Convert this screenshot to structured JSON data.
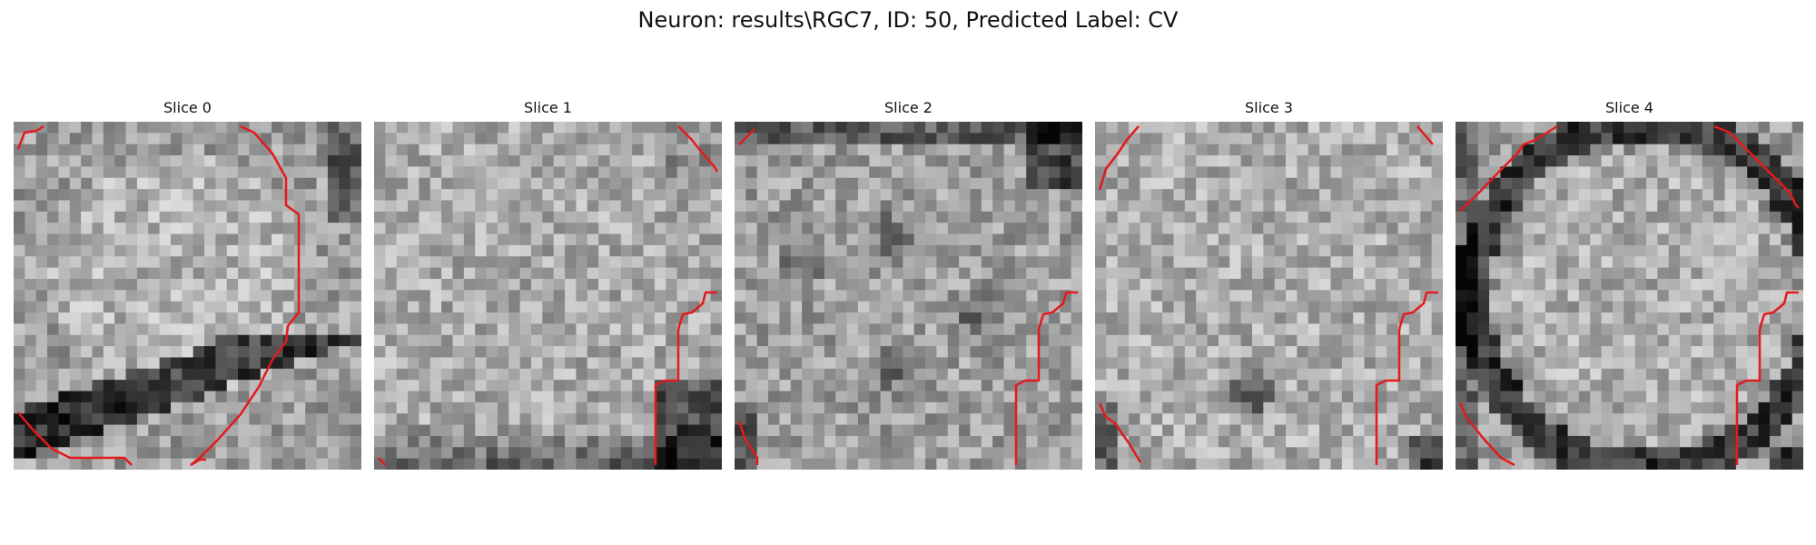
{
  "figure": {
    "title": "Neuron: results\\RGC7, ID: 50, Predicted Label: CV",
    "contour_color": "#e41a1c",
    "colormap": "grayscale"
  },
  "panels": [
    {
      "title": "Slice 0",
      "seed": 11,
      "theme": "cell-with-dark-band-bottom"
    },
    {
      "title": "Slice 1",
      "seed": 27,
      "theme": "bright-cell-dark-bottom-right"
    },
    {
      "title": "Slice 2",
      "seed": 43,
      "theme": "textured-dark-blobs"
    },
    {
      "title": "Slice 3",
      "seed": 59,
      "theme": "bright-noisy"
    },
    {
      "title": "Slice 4",
      "seed": 71,
      "theme": "cell-with-dark-ring"
    }
  ]
}
